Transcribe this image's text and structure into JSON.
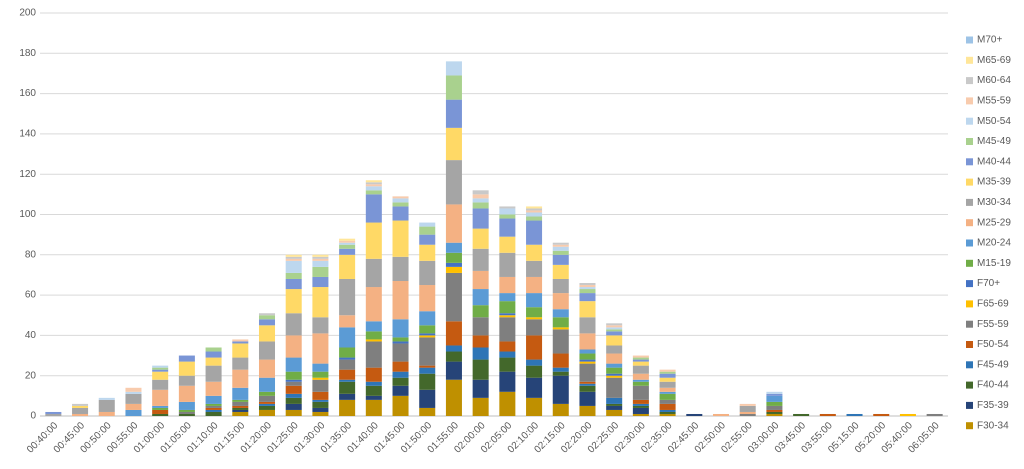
{
  "chart_data": {
    "type": "bar",
    "stacked": true,
    "categories": [
      "00:40:00",
      "00:45:00",
      "00:50:00",
      "00:55:00",
      "01:00:00",
      "01:05:00",
      "01:10:00",
      "01:15:00",
      "01:20:00",
      "01:25:00",
      "01:30:00",
      "01:35:00",
      "01:40:00",
      "01:45:00",
      "01:50:00",
      "01:55:00",
      "02:00:00",
      "02:05:00",
      "02:10:00",
      "02:15:00",
      "02:20:00",
      "02:25:00",
      "02:30:00",
      "02:35:00",
      "02:45:00",
      "02:50:00",
      "02:55:00",
      "03:00:00",
      "03:45:00",
      "03:55:00",
      "05:15:00",
      "05:20:00",
      "05:40:00",
      "06:05:00"
    ],
    "ylim": [
      0,
      200
    ],
    "yticks": [
      0,
      20,
      40,
      60,
      80,
      100,
      120,
      140,
      160,
      180,
      200
    ],
    "grid": true,
    "legend": "right",
    "series": [
      {
        "name": "F30-34",
        "color": "#bf9000",
        "values": [
          0,
          0,
          0,
          0,
          0,
          0,
          0,
          2,
          3,
          3,
          2,
          8,
          8,
          10,
          4,
          18,
          9,
          12,
          9,
          6,
          5,
          3,
          1,
          1,
          0,
          0,
          0,
          1,
          0,
          0,
          0,
          0,
          0,
          0
        ]
      },
      {
        "name": "F35-39",
        "color": "#264478",
        "values": [
          0,
          0,
          0,
          0,
          0,
          0,
          0,
          1,
          0,
          3,
          2,
          3,
          2,
          5,
          9,
          9,
          9,
          10,
          10,
          14,
          7,
          2,
          3,
          0,
          1,
          0,
          0,
          0,
          0,
          0,
          0,
          0,
          0,
          0
        ]
      },
      {
        "name": "F40-44",
        "color": "#43682b",
        "values": [
          0,
          0,
          0,
          0,
          1,
          1,
          2,
          1,
          2,
          3,
          3,
          6,
          5,
          4,
          8,
          5,
          10,
          7,
          6,
          2,
          3,
          1,
          1,
          1,
          0,
          0,
          0,
          1,
          1,
          0,
          0,
          0,
          0,
          0
        ]
      },
      {
        "name": "F45-49",
        "color": "#2e75b6",
        "values": [
          0,
          0,
          0,
          0,
          0,
          0,
          1,
          0,
          1,
          2,
          1,
          1,
          2,
          3,
          3,
          3,
          6,
          3,
          3,
          2,
          1,
          3,
          1,
          1,
          0,
          0,
          0,
          0,
          0,
          0,
          1,
          0,
          0,
          0
        ]
      },
      {
        "name": "F50-54",
        "color": "#c55a11",
        "values": [
          0,
          0,
          0,
          0,
          2,
          0,
          1,
          1,
          1,
          4,
          4,
          5,
          7,
          5,
          1,
          12,
          6,
          5,
          12,
          7,
          1,
          0,
          2,
          3,
          0,
          0,
          0,
          1,
          0,
          1,
          0,
          1,
          0,
          0
        ]
      },
      {
        "name": "F55-59",
        "color": "#7f7f7f",
        "values": [
          0,
          0,
          0,
          0,
          0,
          1,
          1,
          2,
          3,
          2,
          6,
          5,
          13,
          9,
          14,
          24,
          9,
          12,
          8,
          12,
          9,
          10,
          7,
          2,
          0,
          0,
          1,
          2,
          0,
          0,
          0,
          0,
          0,
          1
        ]
      },
      {
        "name": "F65-69",
        "color": "#ffc000",
        "values": [
          0,
          0,
          0,
          0,
          0,
          0,
          0,
          0,
          0,
          0,
          1,
          0,
          1,
          0,
          1,
          3,
          0,
          1,
          1,
          1,
          1,
          1,
          0,
          0,
          0,
          0,
          0,
          0,
          0,
          0,
          0,
          0,
          1,
          0
        ]
      },
      {
        "name": "F70+",
        "color": "#4472c4",
        "values": [
          0,
          0,
          0,
          0,
          0,
          0,
          0,
          0,
          0,
          1,
          0,
          1,
          0,
          1,
          1,
          2,
          0,
          1,
          0,
          0,
          1,
          1,
          0,
          0,
          0,
          0,
          0,
          0,
          0,
          0,
          0,
          0,
          0,
          0
        ]
      },
      {
        "name": "M15-19",
        "color": "#70ad47",
        "values": [
          0,
          0,
          0,
          0,
          1,
          1,
          1,
          1,
          2,
          4,
          3,
          5,
          4,
          2,
          4,
          5,
          6,
          6,
          5,
          5,
          3,
          3,
          2,
          3,
          0,
          0,
          0,
          2,
          0,
          0,
          0,
          0,
          0,
          0
        ]
      },
      {
        "name": "M20-24",
        "color": "#5b9bd5",
        "values": [
          0,
          0,
          0,
          3,
          1,
          4,
          4,
          6,
          7,
          7,
          4,
          10,
          5,
          9,
          7,
          5,
          8,
          4,
          7,
          4,
          2,
          2,
          1,
          1,
          0,
          0,
          0,
          3,
          0,
          0,
          0,
          0,
          0,
          0
        ]
      },
      {
        "name": "M25-29",
        "color": "#f4b183",
        "values": [
          0,
          1,
          2,
          3,
          8,
          8,
          7,
          9,
          9,
          11,
          15,
          6,
          17,
          19,
          13,
          19,
          9,
          8,
          8,
          8,
          8,
          5,
          3,
          2,
          0,
          1,
          1,
          0,
          0,
          0,
          0,
          0,
          0,
          0
        ]
      },
      {
        "name": "M30-34",
        "color": "#a5a5a5",
        "values": [
          1,
          3,
          6,
          5,
          5,
          5,
          8,
          6,
          9,
          11,
          8,
          18,
          14,
          12,
          12,
          22,
          11,
          12,
          8,
          7,
          8,
          4,
          4,
          3,
          0,
          0,
          3,
          0,
          0,
          0,
          0,
          0,
          0,
          0
        ]
      },
      {
        "name": "M35-39",
        "color": "#ffd966",
        "values": [
          0,
          1,
          0,
          0,
          4,
          7,
          4,
          7,
          8,
          12,
          15,
          12,
          18,
          18,
          8,
          16,
          10,
          8,
          8,
          7,
          8,
          5,
          2,
          2,
          0,
          0,
          0,
          0,
          0,
          0,
          0,
          0,
          0,
          0
        ]
      },
      {
        "name": "M40-44",
        "color": "#7a95d6",
        "values": [
          1,
          0,
          0,
          0,
          1,
          3,
          3,
          1,
          3,
          5,
          5,
          3,
          14,
          7,
          5,
          14,
          10,
          9,
          12,
          5,
          4,
          2,
          1,
          2,
          0,
          0,
          0,
          1,
          0,
          0,
          0,
          0,
          0,
          0
        ]
      },
      {
        "name": "M45-49",
        "color": "#a9d18e",
        "values": [
          0,
          0,
          0,
          0,
          1,
          0,
          2,
          0,
          2,
          3,
          5,
          2,
          2,
          2,
          4,
          12,
          3,
          2,
          2,
          2,
          2,
          1,
          1,
          1,
          0,
          0,
          0,
          0,
          0,
          0,
          0,
          0,
          0,
          0
        ]
      },
      {
        "name": "M50-54",
        "color": "#bdd7ee",
        "values": [
          0,
          0,
          1,
          1,
          1,
          0,
          0,
          0,
          0,
          6,
          3,
          1,
          2,
          2,
          2,
          7,
          2,
          3,
          2,
          2,
          1,
          1,
          0,
          0,
          0,
          0,
          0,
          1,
          0,
          0,
          0,
          0,
          0,
          0
        ]
      },
      {
        "name": "M55-59",
        "color": "#f8cbad",
        "values": [
          0,
          0,
          0,
          2,
          0,
          0,
          0,
          1,
          0,
          1,
          1,
          1,
          1,
          1,
          0,
          0,
          2,
          0,
          1,
          1,
          1,
          1,
          1,
          1,
          0,
          0,
          1,
          0,
          0,
          0,
          0,
          0,
          0,
          0
        ]
      },
      {
        "name": "M60-64",
        "color": "#c9c9c9",
        "values": [
          0,
          1,
          0,
          0,
          0,
          0,
          0,
          0,
          1,
          1,
          1,
          0,
          1,
          0,
          0,
          0,
          2,
          1,
          1,
          1,
          1,
          1,
          0,
          0,
          0,
          0,
          0,
          0,
          0,
          0,
          0,
          0,
          0,
          0
        ]
      },
      {
        "name": "M65-69",
        "color": "#ffe699",
        "values": [
          0,
          0,
          0,
          0,
          0,
          0,
          0,
          0,
          0,
          1,
          1,
          1,
          1,
          0,
          0,
          0,
          0,
          0,
          1,
          0,
          0,
          0,
          0,
          0,
          0,
          0,
          0,
          0,
          0,
          0,
          0,
          0,
          0,
          0
        ]
      },
      {
        "name": "M70+",
        "color": "#9dc3e6",
        "values": [
          0,
          0,
          0,
          0,
          0,
          0,
          0,
          0,
          0,
          0,
          0,
          0,
          0,
          0,
          0,
          0,
          0,
          0,
          0,
          0,
          0,
          0,
          0,
          0,
          0,
          0,
          0,
          0,
          0,
          0,
          0,
          0,
          0,
          0
        ]
      }
    ]
  }
}
